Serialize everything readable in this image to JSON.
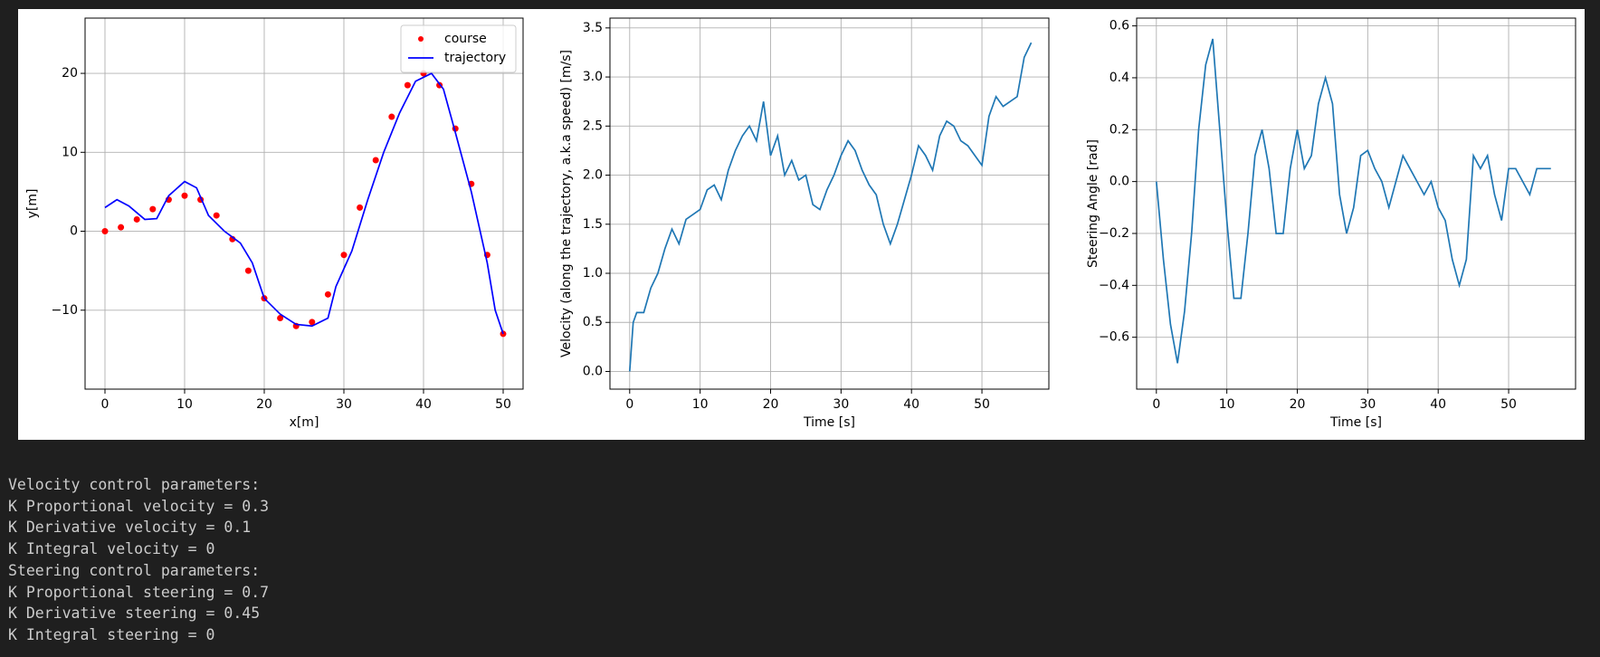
{
  "chart_data": [
    {
      "type": "line",
      "xlabel": "x[m]",
      "ylabel": "y[m]",
      "legend": "upper right",
      "grid": true,
      "xlim": [
        -2.5,
        52.5
      ],
      "ylim": [
        -20,
        27
      ],
      "xticks": [
        0,
        10,
        20,
        30,
        40,
        50
      ],
      "yticks": [
        {
          "value": -10,
          "label": "−10"
        },
        0,
        10,
        20
      ],
      "series": [
        {
          "name": "course",
          "color": "#ff0000",
          "style": "points",
          "x": [
            0,
            2,
            4,
            6,
            8,
            10,
            12,
            14,
            16,
            18,
            20,
            22,
            24,
            26,
            28,
            30,
            32,
            34,
            36,
            38,
            40,
            42,
            44,
            46,
            48,
            50
          ],
          "values": [
            0,
            0.5,
            1.5,
            2.8,
            4,
            4.5,
            4,
            2,
            -1,
            -5,
            -8.5,
            -11,
            -12,
            -11.5,
            -8,
            -3,
            3,
            9,
            14.5,
            18.5,
            20,
            18.5,
            13,
            6,
            -3,
            -13
          ]
        },
        {
          "name": "trajectory",
          "color": "#0000ff",
          "style": "line",
          "x": [
            0,
            1.5,
            3,
            5,
            6.5,
            8,
            10,
            11.5,
            13,
            15,
            17,
            18.5,
            20,
            22,
            24,
            26,
            28,
            29,
            31,
            33,
            35,
            37,
            39,
            41,
            42.5,
            44,
            46,
            48,
            49,
            50
          ],
          "values": [
            3,
            4,
            3.2,
            1.5,
            1.6,
            4.5,
            6.3,
            5.5,
            2,
            0,
            -1.5,
            -4,
            -8.5,
            -10.5,
            -11.8,
            -12,
            -11,
            -7,
            -2.5,
            4,
            10,
            15,
            19,
            20,
            18,
            12.5,
            5,
            -4,
            -10,
            -13
          ]
        }
      ]
    },
    {
      "type": "line",
      "xlabel": "Time [s]",
      "ylabel": "Velocity (along the trajectory, a.k.a speed) [m/s]",
      "grid": true,
      "xlim": [
        -2.8,
        59.5
      ],
      "ylim": [
        -0.18,
        3.6
      ],
      "xticks": [
        0,
        10,
        20,
        30,
        40,
        50
      ],
      "yticks": [
        {
          "value": 0,
          "label": "0.0"
        },
        0.5,
        {
          "value": 1,
          "label": "1.0"
        },
        1.5,
        {
          "value": 2,
          "label": "2.0"
        },
        2.5,
        {
          "value": 3,
          "label": "3.0"
        },
        3.5
      ],
      "x": [
        0,
        0.5,
        1,
        2,
        3,
        4,
        5,
        6,
        7,
        8,
        9,
        10,
        11,
        12,
        13,
        14,
        15,
        16,
        17,
        18,
        19,
        20,
        21,
        22,
        23,
        24,
        25,
        26,
        27,
        28,
        29,
        30,
        31,
        32,
        33,
        34,
        35,
        36,
        37,
        38,
        39,
        40,
        41,
        42,
        43,
        44,
        45,
        46,
        47,
        48,
        49,
        50,
        51,
        52,
        53,
        54,
        55,
        56,
        57
      ],
      "series": [
        {
          "color": "#1f77b4",
          "style": "line",
          "values": [
            0,
            0.5,
            0.6,
            0.6,
            0.85,
            1.0,
            1.25,
            1.45,
            1.3,
            1.55,
            1.6,
            1.65,
            1.85,
            1.9,
            1.75,
            2.05,
            2.25,
            2.4,
            2.5,
            2.35,
            2.75,
            2.2,
            2.4,
            2.0,
            2.15,
            1.95,
            2.0,
            1.7,
            1.65,
            1.85,
            2.0,
            2.2,
            2.35,
            2.25,
            2.05,
            1.9,
            1.8,
            1.5,
            1.3,
            1.5,
            1.75,
            2.0,
            2.3,
            2.2,
            2.05,
            2.4,
            2.55,
            2.5,
            2.35,
            2.3,
            2.2,
            2.1,
            2.6,
            2.8,
            2.7,
            2.75,
            2.8,
            3.2,
            3.35
          ]
        }
      ]
    },
    {
      "type": "line",
      "xlabel": "Time [s]",
      "ylabel": "Steering Angle [rad]",
      "grid": true,
      "xlim": [
        -2.8,
        59.5
      ],
      "ylim": [
        -0.8,
        0.63
      ],
      "xticks": [
        0,
        10,
        20,
        30,
        40,
        50
      ],
      "yticks": [
        {
          "value": -0.6,
          "label": "−0.6"
        },
        {
          "value": -0.4,
          "label": "−0.4"
        },
        {
          "value": -0.2,
          "label": "−0.2"
        },
        {
          "value": 0,
          "label": "0.0"
        },
        0.2,
        0.4,
        0.6
      ],
      "x": [
        0,
        1,
        2,
        3,
        4,
        5,
        6,
        7,
        8,
        9,
        10,
        11,
        12,
        13,
        14,
        15,
        16,
        17,
        18,
        19,
        20,
        21,
        22,
        23,
        24,
        25,
        26,
        27,
        28,
        29,
        30,
        31,
        32,
        33,
        34,
        35,
        36,
        37,
        38,
        39,
        40,
        41,
        42,
        43,
        44,
        45,
        46,
        47,
        48,
        49,
        50,
        51,
        52,
        53,
        54,
        55,
        56
      ],
      "series": [
        {
          "color": "#1f77b4",
          "style": "line",
          "values": [
            0,
            -0.3,
            -0.55,
            -0.7,
            -0.5,
            -0.2,
            0.2,
            0.45,
            0.55,
            0.2,
            -0.15,
            -0.45,
            -0.45,
            -0.2,
            0.1,
            0.2,
            0.05,
            -0.2,
            -0.2,
            0.05,
            0.2,
            0.05,
            0.1,
            0.3,
            0.4,
            0.3,
            -0.05,
            -0.2,
            -0.1,
            0.1,
            0.12,
            0.05,
            0.0,
            -0.1,
            0.0,
            0.1,
            0.05,
            0.0,
            -0.05,
            0.0,
            -0.1,
            -0.15,
            -0.3,
            -0.4,
            -0.3,
            0.1,
            0.05,
            0.1,
            -0.05,
            -0.15,
            0.05,
            0.05,
            0.0,
            -0.05,
            0.05,
            0.05,
            0.05
          ]
        }
      ]
    }
  ],
  "output": {
    "lines": [
      "Velocity control parameters:",
      "K Proportional velocity = 0.3",
      "K Derivative velocity = 0.1",
      "K Integral velocity = 0",
      "Steering control parameters:",
      "K Proportional steering = 0.7",
      "K Derivative steering = 0.45",
      "K Integral steering = 0"
    ]
  }
}
